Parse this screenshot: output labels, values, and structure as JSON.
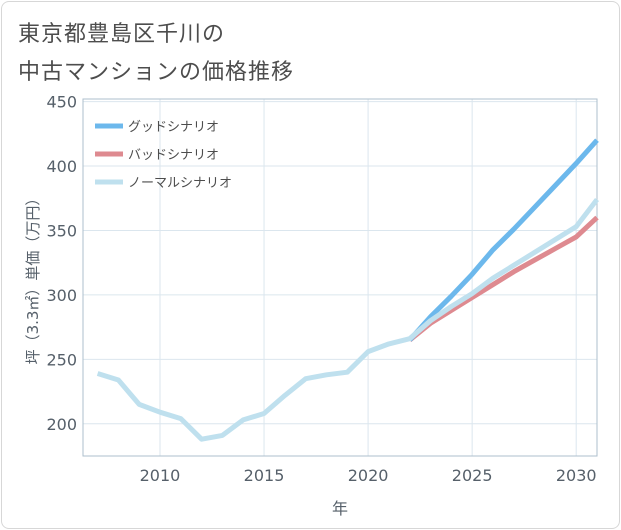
{
  "title_lines": [
    "東京都豊島区千川の",
    "中古マンションの価格推移"
  ],
  "chart_data": {
    "type": "line",
    "xlabel": "年",
    "ylabel": "坪（3.3㎡）単価（万円）",
    "xlim": [
      2006.3,
      2031
    ],
    "ylim": [
      175,
      452
    ],
    "x_ticks": [
      2010,
      2015,
      2020,
      2025,
      2030
    ],
    "y_ticks": [
      200,
      250,
      300,
      350,
      400,
      450
    ],
    "grid": true,
    "legend_position": "top-left",
    "series": [
      {
        "name": "グッドシナリオ",
        "color": "#6cb8ec",
        "x": [
          2022,
          2023,
          2024,
          2025,
          2026,
          2027,
          2028,
          2029,
          2030,
          2031
        ],
        "y": [
          265,
          283,
          299,
          316,
          335,
          351,
          368,
          385,
          402,
          420
        ]
      },
      {
        "name": "バッドシナリオ",
        "color": "#de8a90",
        "x": [
          2022,
          2023,
          2024,
          2025,
          2026,
          2027,
          2028,
          2029,
          2030,
          2031
        ],
        "y": [
          265,
          278,
          288,
          298,
          308,
          318,
          327,
          336,
          345,
          360
        ]
      },
      {
        "name": "ノーマルシナリオ",
        "color": "#bfe0ee",
        "x": [
          2007,
          2008,
          2009,
          2010,
          2011,
          2012,
          2013,
          2014,
          2015,
          2016,
          2017,
          2018,
          2019,
          2020,
          2021,
          2022,
          2023,
          2024,
          2025,
          2026,
          2027,
          2028,
          2029,
          2030,
          2031
        ],
        "y": [
          239,
          234,
          215,
          209,
          204,
          188,
          191,
          203,
          208,
          222,
          235,
          238,
          240,
          256,
          262,
          266,
          280,
          291,
          301,
          313,
          323,
          333,
          343,
          353,
          374
        ]
      }
    ]
  }
}
